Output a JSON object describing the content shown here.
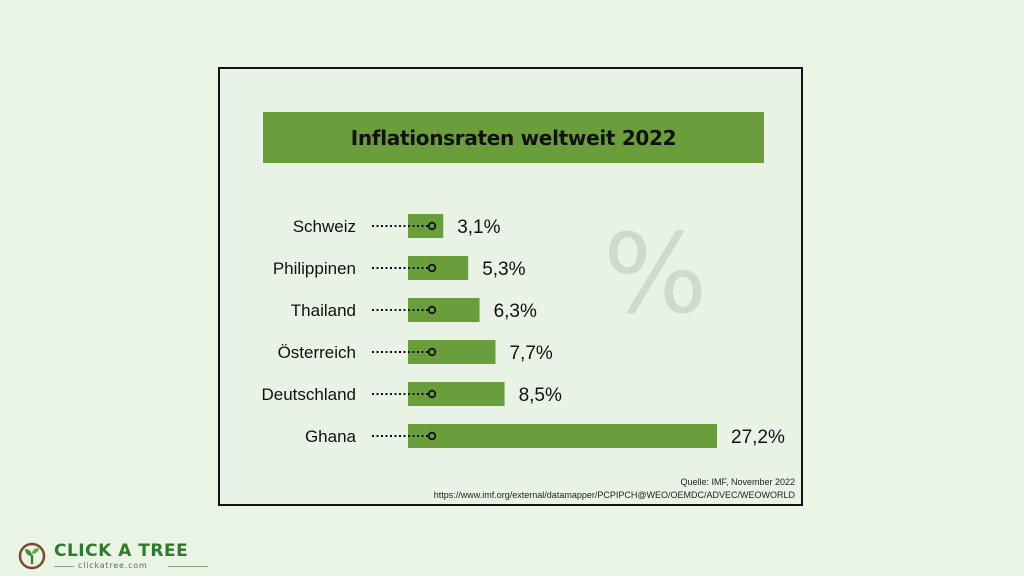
{
  "chart_data": {
    "type": "bar",
    "orientation": "horizontal",
    "title": "Inflationsraten weltweit 2022",
    "categories": [
      "Schweiz",
      "Philippinen",
      "Thailand",
      "Österreich",
      "Deutschland",
      "Ghana"
    ],
    "values": [
      3.1,
      5.3,
      6.3,
      7.7,
      8.5,
      27.2
    ],
    "value_labels": [
      "3,1%",
      "5,3%",
      "6,3%",
      "7,7%",
      "8,5%",
      "27,2%"
    ],
    "xlim": [
      0,
      27.2
    ],
    "grid": false,
    "legend": "none",
    "bar_color": "#6a9e3a",
    "watermark": "%"
  },
  "source": {
    "line1": "Quelle: IMF, November 2022",
    "line2": "https://www.imf.org/external/datamapper/PCPIPCH@WEO/OEMDC/ADVEC/WEOWORLD"
  },
  "logo": {
    "brand": "CLICK A TREE",
    "url": "clickatree.com",
    "icon": "tree-sprout-icon"
  },
  "colors": {
    "background": "#e9f4e5",
    "accent": "#6a9e3a",
    "brand": "#2f7a2a"
  }
}
